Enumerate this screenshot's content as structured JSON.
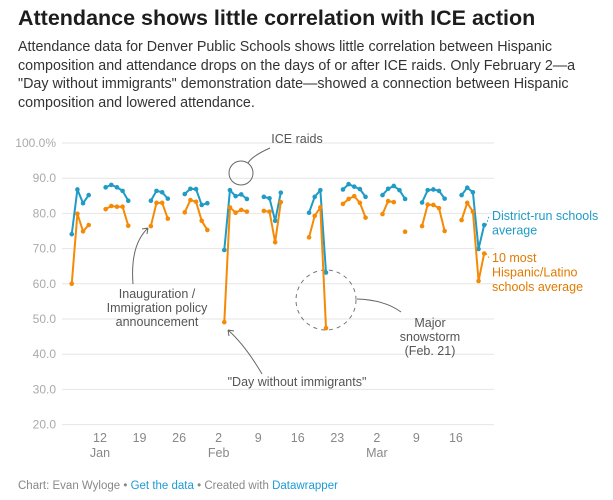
{
  "title": "Attendance shows little correlation with ICE action",
  "subtitle": "Attendance data for Denver Public Schools shows little correlation between Hispanic composition and attendance drops on the days of or after ICE raids. Only February 2—a \"Day without immigrants\" demonstration date—showed a connection between Hispanic composition and lowered attendance.",
  "footer": {
    "credit": "Chart: Evan Wyloge",
    "sep": " • ",
    "data_link": "Get the data",
    "created": "Created with ",
    "tool_link": "Datawrapper"
  },
  "colors": {
    "district": "#1f9bc6",
    "hispanic": "#f58a07",
    "grid": "#e6e6e6",
    "annotation": "#666666"
  },
  "chart_data": {
    "type": "line",
    "title": "Attendance shows little correlation with ICE action",
    "xlabel": "",
    "ylabel": "",
    "ylim": [
      20,
      100
    ],
    "y_ticks": [
      "100.0%",
      "90.0",
      "80.0",
      "70.0",
      "60.0",
      "50.0",
      "40.0",
      "30.0",
      "20.0"
    ],
    "y_tick_values": [
      100,
      90,
      80,
      70,
      60,
      50,
      40,
      30,
      20
    ],
    "x_ticks": [
      {
        "date": "2025-01-12",
        "day": "12",
        "month": "Jan"
      },
      {
        "date": "2025-01-19",
        "day": "19",
        "month": ""
      },
      {
        "date": "2025-01-26",
        "day": "26",
        "month": ""
      },
      {
        "date": "2025-02-02",
        "day": "2",
        "month": "Feb"
      },
      {
        "date": "2025-02-09",
        "day": "9",
        "month": ""
      },
      {
        "date": "2025-02-16",
        "day": "16",
        "month": ""
      },
      {
        "date": "2025-02-23",
        "day": "23",
        "month": ""
      },
      {
        "date": "2025-03-02",
        "day": "2",
        "month": "Mar"
      },
      {
        "date": "2025-03-09",
        "day": "9",
        "month": ""
      },
      {
        "date": "2025-03-16",
        "day": "16",
        "month": ""
      }
    ],
    "grid": true,
    "legend": "direct labels at right",
    "series": [
      {
        "name": "District-run schools average",
        "label_lines": [
          "District-run schools",
          "average"
        ],
        "color": "#1f9bc6",
        "points": [
          [
            "2025-01-07",
            74.1
          ],
          [
            "2025-01-08",
            86.8
          ],
          [
            "2025-01-09",
            82.9
          ],
          [
            "2025-01-10",
            85.2
          ],
          [
            "2025-01-13",
            87.4
          ],
          [
            "2025-01-14",
            88.1
          ],
          [
            "2025-01-15",
            87.4
          ],
          [
            "2025-01-16",
            86.4
          ],
          [
            "2025-01-17",
            83.6
          ],
          [
            "2025-01-21",
            83.6
          ],
          [
            "2025-01-22",
            86.4
          ],
          [
            "2025-01-23",
            86.0
          ],
          [
            "2025-01-24",
            84.2
          ],
          [
            "2025-01-27",
            85.5
          ],
          [
            "2025-01-28",
            87.0
          ],
          [
            "2025-01-29",
            86.9
          ],
          [
            "2025-01-30",
            82.4
          ],
          [
            "2025-01-31",
            82.9
          ],
          [
            "2025-02-03",
            69.6
          ],
          [
            "2025-02-04",
            86.6
          ],
          [
            "2025-02-05",
            84.9
          ],
          [
            "2025-02-06",
            85.4
          ],
          [
            "2025-02-07",
            84.1
          ],
          [
            "2025-02-10",
            84.7
          ],
          [
            "2025-02-11",
            84.3
          ],
          [
            "2025-02-12",
            77.9
          ],
          [
            "2025-02-13",
            85.9
          ],
          [
            "2025-02-18",
            80.2
          ],
          [
            "2025-02-19",
            84.7
          ],
          [
            "2025-02-20",
            86.6
          ],
          [
            "2025-02-21",
            63.2
          ],
          [
            "2025-02-24",
            86.8
          ],
          [
            "2025-02-25",
            88.3
          ],
          [
            "2025-02-26",
            87.6
          ],
          [
            "2025-02-27",
            86.9
          ],
          [
            "2025-02-28",
            84.7
          ],
          [
            "2025-03-03",
            85.2
          ],
          [
            "2025-03-04",
            87.0
          ],
          [
            "2025-03-05",
            87.8
          ],
          [
            "2025-03-06",
            86.6
          ],
          [
            "2025-03-07",
            84.1
          ],
          [
            "2025-03-10",
            83.1
          ],
          [
            "2025-03-11",
            86.6
          ],
          [
            "2025-03-12",
            86.8
          ],
          [
            "2025-03-13",
            86.4
          ],
          [
            "2025-03-14",
            84.2
          ],
          [
            "2025-03-17",
            85.2
          ],
          [
            "2025-03-18",
            87.3
          ],
          [
            "2025-03-19",
            86.0
          ],
          [
            "2025-03-20",
            69.9
          ],
          [
            "2025-03-21",
            76.7
          ]
        ]
      },
      {
        "name": "10 most Hispanic/Latino schools average",
        "label_lines": [
          "10 most",
          "Hispanic/Latino",
          "schools average"
        ],
        "color": "#f58a07",
        "points": [
          [
            "2025-01-07",
            60.0
          ],
          [
            "2025-01-08",
            79.9
          ],
          [
            "2025-01-09",
            74.9
          ],
          [
            "2025-01-10",
            76.7
          ],
          [
            "2025-01-13",
            81.2
          ],
          [
            "2025-01-14",
            82.1
          ],
          [
            "2025-01-15",
            81.9
          ],
          [
            "2025-01-16",
            81.9
          ],
          [
            "2025-01-17",
            76.5
          ],
          [
            "2025-01-21",
            76.4
          ],
          [
            "2025-01-22",
            83.0
          ],
          [
            "2025-01-23",
            83.0
          ],
          [
            "2025-01-24",
            78.5
          ],
          [
            "2025-01-27",
            80.3
          ],
          [
            "2025-01-28",
            83.8
          ],
          [
            "2025-01-29",
            83.3
          ],
          [
            "2025-01-30",
            77.9
          ],
          [
            "2025-01-31",
            75.3
          ],
          [
            "2025-02-03",
            49.1
          ],
          [
            "2025-02-04",
            81.7
          ],
          [
            "2025-02-05",
            80.2
          ],
          [
            "2025-02-06",
            81.0
          ],
          [
            "2025-02-07",
            80.5
          ],
          [
            "2025-02-10",
            80.7
          ],
          [
            "2025-02-11",
            80.5
          ],
          [
            "2025-02-12",
            71.8
          ],
          [
            "2025-02-13",
            83.2
          ],
          [
            "2025-02-18",
            73.2
          ],
          [
            "2025-02-19",
            79.3
          ],
          [
            "2025-02-20",
            81.7
          ],
          [
            "2025-02-21",
            47.4
          ],
          [
            "2025-02-24",
            82.7
          ],
          [
            "2025-02-25",
            84.1
          ],
          [
            "2025-02-26",
            84.9
          ],
          [
            "2025-02-27",
            83.0
          ],
          [
            "2025-02-28",
            78.8
          ],
          [
            "2025-03-03",
            79.8
          ],
          [
            "2025-03-04",
            83.5
          ],
          [
            "2025-03-05",
            83.2
          ],
          [
            "2025-03-07",
            74.8
          ],
          [
            "2025-03-10",
            76.4
          ],
          [
            "2025-03-11",
            82.5
          ],
          [
            "2025-03-12",
            82.4
          ],
          [
            "2025-03-13",
            81.5
          ],
          [
            "2025-03-14",
            75.0
          ],
          [
            "2025-03-17",
            78.1
          ],
          [
            "2025-03-18",
            83.0
          ],
          [
            "2025-03-19",
            80.5
          ],
          [
            "2025-03-20",
            60.8
          ],
          [
            "2025-03-21",
            68.6
          ]
        ]
      }
    ],
    "annotations": {
      "ice_raids": "ICE raids",
      "inauguration": [
        "Inauguration /",
        "Immigration policy",
        "announcement"
      ],
      "day_without": "\"Day without immigrants\"",
      "snowstorm": [
        "Major",
        "snowstorm",
        "(Feb. 21)"
      ]
    }
  }
}
